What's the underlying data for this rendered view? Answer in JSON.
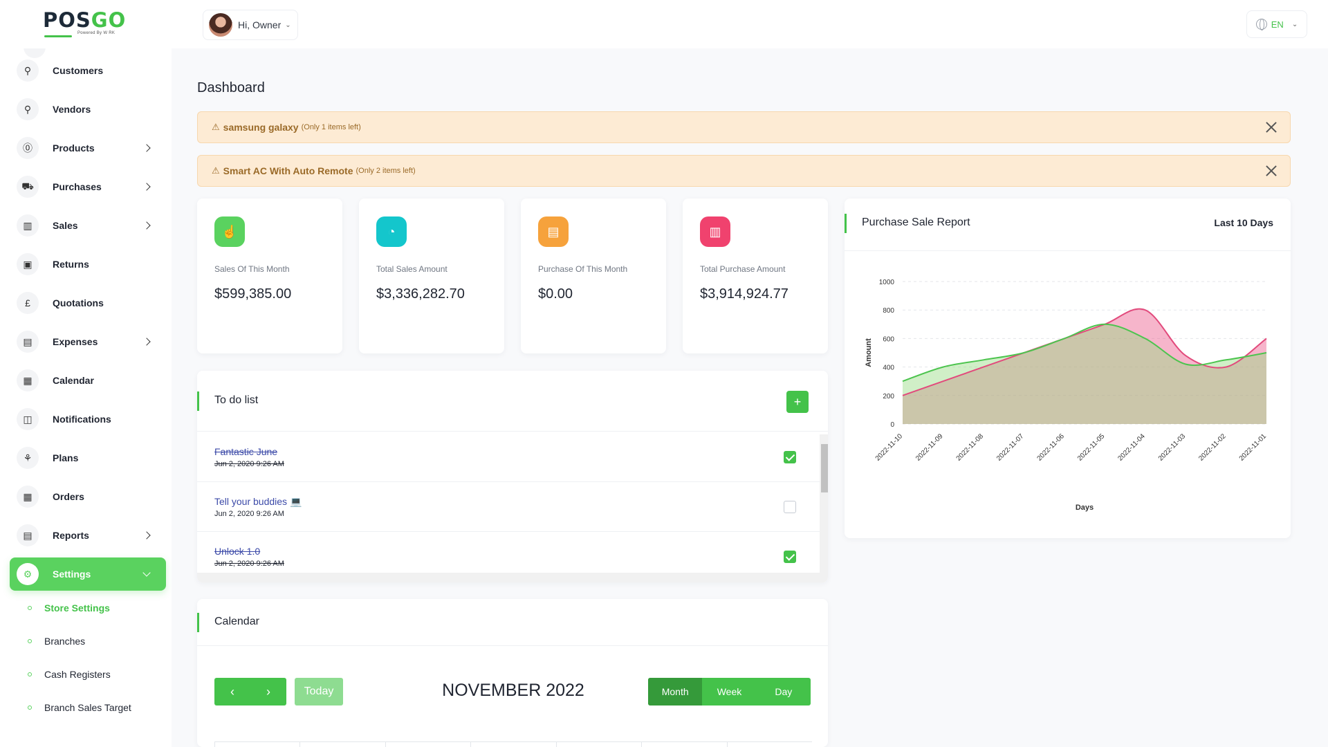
{
  "header": {
    "logo_main": "POS",
    "logo_accent": "GO",
    "logo_sub": "Powered By W RK",
    "greeting": "Hi, Owner",
    "language": "EN"
  },
  "sidebar": {
    "items": [
      {
        "label": "Customers",
        "icon": "user-icon",
        "glyph": "⚲",
        "has_children": false
      },
      {
        "label": "Vendors",
        "icon": "user-plus-icon",
        "glyph": "⚲",
        "has_children": false
      },
      {
        "label": "Products",
        "icon": "product-icon",
        "glyph": "⓪",
        "has_children": true
      },
      {
        "label": "Purchases",
        "icon": "cart-icon",
        "glyph": "⛟",
        "has_children": true
      },
      {
        "label": "Sales",
        "icon": "book-icon",
        "glyph": "▥",
        "has_children": true
      },
      {
        "label": "Returns",
        "icon": "return-icon",
        "glyph": "▣",
        "has_children": false
      },
      {
        "label": "Quotations",
        "icon": "pound-icon",
        "glyph": "£",
        "has_children": false
      },
      {
        "label": "Expenses",
        "icon": "clipboard-icon",
        "glyph": "▤",
        "has_children": true
      },
      {
        "label": "Calendar",
        "icon": "calendar-icon",
        "glyph": "▦",
        "has_children": false
      },
      {
        "label": "Notifications",
        "icon": "bell-icon",
        "glyph": "◫",
        "has_children": false
      },
      {
        "label": "Plans",
        "icon": "badge-icon",
        "glyph": "⚘",
        "has_children": false
      },
      {
        "label": "Orders",
        "icon": "orders-icon",
        "glyph": "▦",
        "has_children": false
      },
      {
        "label": "Reports",
        "icon": "report-icon",
        "glyph": "▤",
        "has_children": true
      },
      {
        "label": "Settings",
        "icon": "gear-icon",
        "glyph": "⚙",
        "has_children": true,
        "active": true
      }
    ],
    "sub_items": [
      {
        "label": "Store Settings",
        "active": true
      },
      {
        "label": "Branches"
      },
      {
        "label": "Cash Registers"
      },
      {
        "label": "Branch Sales Target"
      }
    ]
  },
  "main": {
    "title": "Dashboard",
    "alerts": [
      {
        "name": "samsung galaxy",
        "note": "(Only 1 items left)"
      },
      {
        "name": "Smart AC With Auto Remote",
        "note": "(Only 2 items left)"
      }
    ],
    "stats": [
      {
        "label": "Sales Of This Month",
        "value": "$599,385.00",
        "color": "#5ad25f",
        "icon": "hand-pointer-icon",
        "glyph": "☝"
      },
      {
        "label": "Total Sales Amount",
        "value": "$3,336,282.70",
        "color": "#14c6cc",
        "icon": "pie-chart-icon",
        "glyph": "◔"
      },
      {
        "label": "Purchase Of This Month",
        "value": "$0.00",
        "color": "#f6a23c",
        "icon": "clipboard-dollar-icon",
        "glyph": "▤"
      },
      {
        "label": "Total Purchase Amount",
        "value": "$3,914,924.77",
        "color": "#f0426e",
        "icon": "bar-chart-icon",
        "glyph": "▥"
      }
    ],
    "todo": {
      "title": "To do list",
      "add": "+",
      "items": [
        {
          "title": "Fantastic June",
          "date": "Jun 2, 2020 9:26 AM",
          "done": true
        },
        {
          "title": "Tell your buddies 💻",
          "date": "Jun 2, 2020 9:26 AM",
          "done": false
        },
        {
          "title": "Unlock 1.0",
          "date": "Jun 2, 2020 9:26 AM",
          "done": true
        }
      ]
    },
    "calendar": {
      "title": "Calendar",
      "prev": "‹",
      "next": "›",
      "today": "Today",
      "month_label": "NOVEMBER 2022",
      "views": [
        "Month",
        "Week",
        "Day"
      ],
      "active_view": "Month"
    },
    "report": {
      "title": "Purchase Sale Report",
      "range": "Last 10 Days"
    }
  },
  "colors": {
    "accent": "#44c24a",
    "sale_series": "#e24a7c",
    "purchase_series": "#4cc44e",
    "alert_bg": "#fdebd4"
  },
  "chart_data": {
    "type": "area",
    "title": "",
    "xlabel": "Days",
    "ylabel": "Amount",
    "ylim": [
      0,
      1000
    ],
    "yticks": [
      0,
      200,
      400,
      600,
      800,
      1000
    ],
    "x": [
      "2022-11-10",
      "2022-11-09",
      "2022-11-08",
      "2022-11-07",
      "2022-11-06",
      "2022-11-05",
      "2022-11-04",
      "2022-11-03",
      "2022-11-02",
      "2022-11-01"
    ],
    "series": [
      {
        "color": "#e24a7c",
        "values": [
          200,
          300,
          400,
          500,
          600,
          700,
          800,
          480,
          400,
          600
        ]
      },
      {
        "color": "#4cc44e",
        "values": [
          300,
          400,
          450,
          500,
          600,
          700,
          600,
          420,
          450,
          500
        ]
      }
    ],
    "grid": true
  }
}
